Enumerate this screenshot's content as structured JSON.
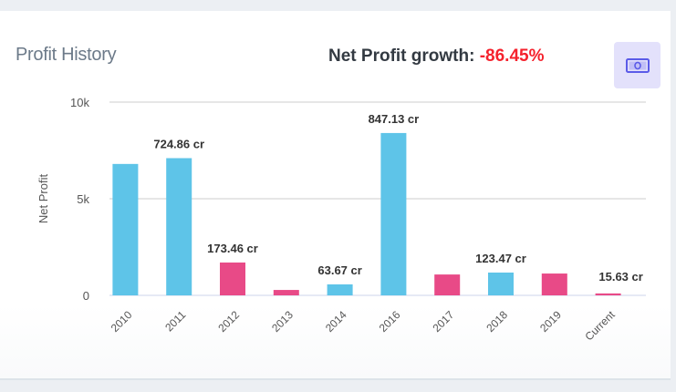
{
  "card": {
    "title": "Profit History",
    "growth_label": "Net Profit growth:",
    "growth_value": "-86.45%",
    "icon": "money-bill-icon"
  },
  "colors": {
    "positive_bar": "#5ec4e8",
    "negative_bar": "#e84a87",
    "growth_negative": "#f5222d",
    "icon_bg": "#e3e1fb",
    "icon_fg": "#5b5be8"
  },
  "chart_data": {
    "type": "bar",
    "title": "Profit History",
    "xlabel": "",
    "ylabel": "Net Profit",
    "ylim": [
      0,
      10000
    ],
    "yticks": [
      0,
      5000,
      10000
    ],
    "ytick_labels": [
      "0",
      "5k",
      "10k"
    ],
    "grid": true,
    "categories": [
      "2010",
      "2011",
      "2012",
      "2013",
      "2014",
      "2016",
      "2017",
      "2018",
      "2019",
      "Current"
    ],
    "values": [
      6800,
      7100,
      1700,
      280,
      570,
      8400,
      1080,
      1180,
      1130,
      100
    ],
    "bar_colors": [
      "positive",
      "positive",
      "negative",
      "negative",
      "positive",
      "positive",
      "negative",
      "positive",
      "negative",
      "negative"
    ],
    "data_labels": [
      "",
      "724.86 cr",
      "173.46 cr",
      "",
      "63.67 cr",
      "847.13 cr",
      "",
      "123.47 cr",
      "",
      "15.63 cr"
    ]
  }
}
